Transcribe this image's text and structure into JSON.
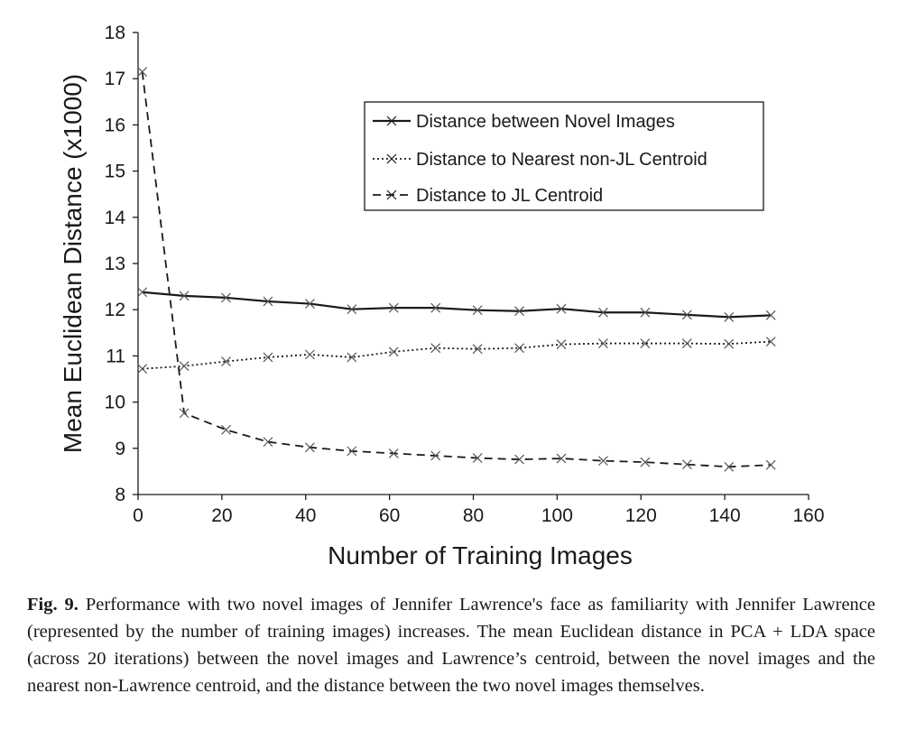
{
  "chart_data": {
    "type": "line",
    "xlabel": "Number of Training Images",
    "ylabel": "Mean Euclidean Distance (x1000)",
    "xlim": [
      0,
      160
    ],
    "ylim": [
      8,
      18
    ],
    "xticks": [
      "0",
      "20",
      "40",
      "60",
      "80",
      "100",
      "120",
      "140",
      "160"
    ],
    "yticks": [
      "8",
      "9",
      "10",
      "11",
      "12",
      "13",
      "14",
      "15",
      "16",
      "17",
      "18"
    ],
    "grid": false,
    "legend_position": "top-right",
    "series": [
      {
        "name": "Distance between Novel Images",
        "style": "solid",
        "color": "#1a1a1a",
        "x": [
          1,
          11,
          21,
          31,
          41,
          51,
          61,
          71,
          81,
          91,
          101,
          111,
          121,
          131,
          141,
          151
        ],
        "y": [
          12.38,
          12.3,
          12.26,
          12.18,
          12.13,
          12.01,
          12.04,
          12.04,
          11.99,
          11.97,
          12.02,
          11.94,
          11.94,
          11.89,
          11.84,
          11.88
        ]
      },
      {
        "name": "Distance to Nearest non-JL Centroid",
        "style": "dotted",
        "color": "#1a1a1a",
        "x": [
          1,
          11,
          21,
          31,
          41,
          51,
          61,
          71,
          81,
          91,
          101,
          111,
          121,
          131,
          141,
          151
        ],
        "y": [
          10.72,
          10.78,
          10.88,
          10.97,
          11.03,
          10.97,
          11.09,
          11.17,
          11.15,
          11.17,
          11.25,
          11.27,
          11.27,
          11.27,
          11.26,
          11.31
        ]
      },
      {
        "name": "Distance to JL Centroid",
        "style": "dashed",
        "color": "#1a1a1a",
        "x": [
          1,
          11,
          21,
          31,
          41,
          51,
          61,
          71,
          81,
          91,
          101,
          111,
          121,
          131,
          141,
          151
        ],
        "y": [
          17.15,
          9.76,
          9.4,
          9.14,
          9.02,
          8.94,
          8.89,
          8.84,
          8.79,
          8.76,
          8.78,
          8.73,
          8.7,
          8.65,
          8.6,
          8.64
        ]
      }
    ]
  },
  "caption": {
    "label": "Fig. 9.",
    "text": " Performance with two novel images of Jennifer Lawrence's face as familiarity with Jennifer Lawrence (represented by the number of training images) increases. The mean Euclidean distance in PCA + LDA space (across 20 iterations) between the novel images and Lawrence’s centroid, between the novel images and the nearest non-Lawrence centroid, and the distance between the two novel images themselves."
  }
}
